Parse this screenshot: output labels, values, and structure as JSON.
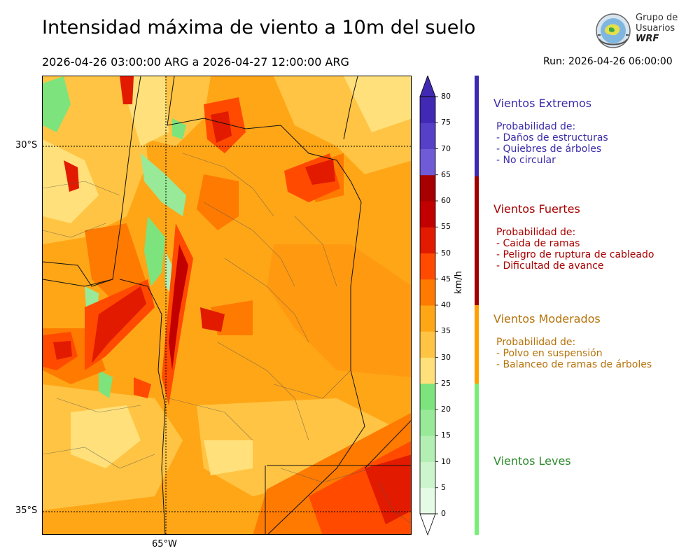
{
  "header": {
    "title": "Intensidad máxima de viento a 10m del suelo",
    "daterange": "2026-04-26 03:00:00 ARG  a  2026-04-27 12:00:00 ARG",
    "run": "Run: 2026-04-26 06:00:00"
  },
  "logo": {
    "line1": "Grupo de",
    "line2": "Usuarios",
    "line3": "WRF"
  },
  "map": {
    "lat_labels": [
      "30°S",
      "35°S"
    ],
    "lon_labels": [
      "65°W"
    ]
  },
  "colorbar": {
    "unit": "km/h",
    "ticks": [
      "0",
      "5",
      "10",
      "15",
      "20",
      "25",
      "30",
      "35",
      "40",
      "45",
      "50",
      "55",
      "60",
      "65",
      "70",
      "75",
      "80"
    ],
    "colors": [
      "#e6fbe6",
      "#cdf5cd",
      "#b3efb3",
      "#98ea98",
      "#7de37d",
      "#ffe07a",
      "#ffc443",
      "#ffa617",
      "#ff7a00",
      "#ff4a00",
      "#e11a00",
      "#c30000",
      "#a70000",
      "#6f5bd6",
      "#5540c7",
      "#4129b3"
    ]
  },
  "legend": [
    {
      "title": "Vientos Extremos",
      "color": "#3b2ca8",
      "bar_color": "#3a2bb0",
      "lines": [
        "Probabilidad de:",
        "- Daños de estructuras",
        "- Quiebres de árboles",
        "- No circular"
      ]
    },
    {
      "title": "Vientos Fuertes",
      "color": "#a80000",
      "bar_color": "#a00000",
      "lines": [
        "Probabilidad de:",
        "- Caida de ramas",
        "- Peligro de ruptura de cableado",
        "- Dificultad de avance"
      ]
    },
    {
      "title": "Vientos Moderados",
      "color": "#b5720a",
      "bar_color": "#ffa000",
      "lines": [
        "Probabilidad de:",
        "- Polvo en suspensión",
        "- Balanceo de ramas de árboles"
      ]
    },
    {
      "title": "Vientos Leves",
      "color": "#2e8b2e",
      "bar_color": "#77ee77",
      "lines": []
    }
  ]
}
